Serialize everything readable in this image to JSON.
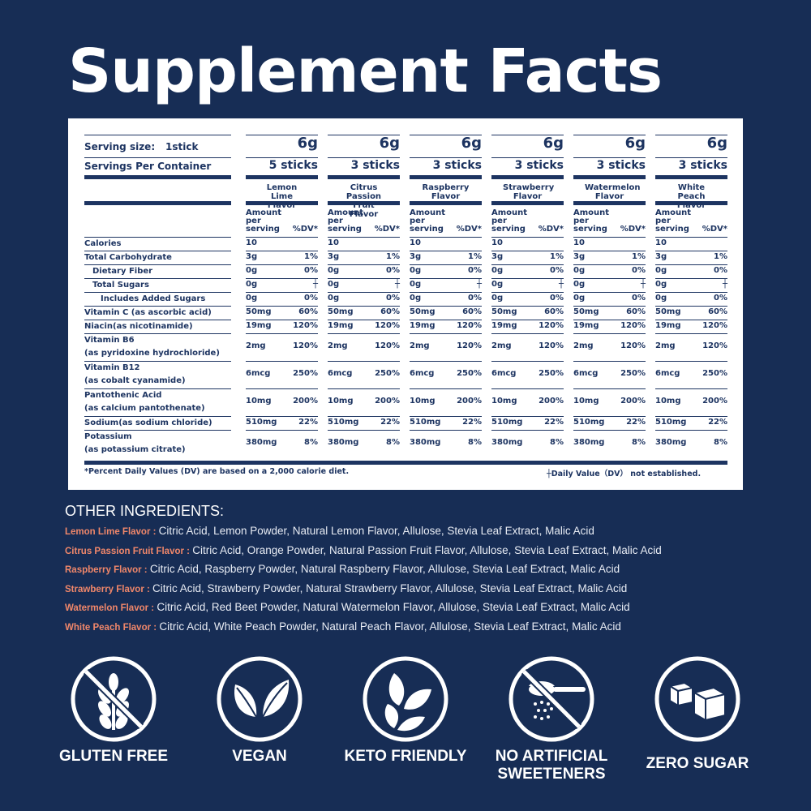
{
  "title": "Supplement Facts",
  "panel": {
    "serving_size_label": "Serving size:",
    "serving_size_value": "1stick",
    "servings_label": "Servings Per Container",
    "amount_label": "Amount per serving",
    "dv_label": "%DV*",
    "products": [
      {
        "flavor": "Lemon Lime Flavor",
        "size": "6g",
        "servings": "5 sticks"
      },
      {
        "flavor": "Citrus Passion Fruit Flavor",
        "size": "6g",
        "servings": "3 sticks"
      },
      {
        "flavor": "Raspberry Flavor",
        "size": "6g",
        "servings": "3 sticks"
      },
      {
        "flavor": "Strawberry Flavor",
        "size": "6g",
        "servings": "3 sticks"
      },
      {
        "flavor": "Watermelon Flavor",
        "size": "6g",
        "servings": "3 sticks"
      },
      {
        "flavor": "White Peach Flavor",
        "size": "6g",
        "servings": "3 sticks"
      }
    ],
    "nutrients": [
      {
        "label": "Calories",
        "amount": "10",
        "dv": ""
      },
      {
        "label": "Total Carbohydrate",
        "amount": "3g",
        "dv": "1%"
      },
      {
        "label": "Dietary Fiber",
        "amount": "0g",
        "dv": "0%"
      },
      {
        "label": "Total Sugars",
        "amount": "0g",
        "dv": "┼"
      },
      {
        "label": "Includes Added Sugars",
        "amount": "0g",
        "dv": "0%"
      },
      {
        "label": "Vitamin C (as ascorbic acid)",
        "amount": "50mg",
        "dv": "60%"
      },
      {
        "label": "Niacin(as nicotinamide)",
        "amount": "19mg",
        "dv": "120%"
      },
      {
        "label": "Vitamin B6",
        "label2": "(as pyridoxine hydrochloride)",
        "amount": "2mg",
        "dv": "120%"
      },
      {
        "label": "Vitamin B12",
        "label2": "(as cobalt cyanamide)",
        "amount": "6mcg",
        "dv": "250%"
      },
      {
        "label": "Pantothenic Acid",
        "label2": "(as calcium pantothenate)",
        "amount": "10mg",
        "dv": "200%"
      },
      {
        "label": "Sodium(as sodium chloride)",
        "amount": "510mg",
        "dv": "22%"
      },
      {
        "label": "Potassium",
        "label2": "(as potassium citrate)",
        "amount": "380mg",
        "dv": "8%"
      }
    ],
    "footnote_left": "*Percent Daily Values (DV) are based on a 2,000 calorie diet.",
    "footnote_right": "┼Daily Value（DV） not established."
  },
  "other_ingredients": {
    "title": "OTHER INGREDIENTS:",
    "items": [
      {
        "flavor": "Lemon Lime  Flavor",
        "text": "Citric Acid, Lemon Powder, Natural Lemon Flavor, Allulose, Stevia Leaf Extract, Malic Acid"
      },
      {
        "flavor": "Citrus Passion Fruit  Flavor",
        "text": "Citric Acid, Orange Powder, Natural Passion Fruit Flavor, Allulose, Stevia Leaf Extract, Malic Acid"
      },
      {
        "flavor": "Raspberry  Flavor",
        "text": "Citric Acid, Raspberry Powder, Natural Raspberry Flavor, Allulose, Stevia Leaf Extract, Malic Acid"
      },
      {
        "flavor": "Strawberry  Flavor",
        "text": "Citric Acid, Strawberry Powder, Natural Strawberry Flavor, Allulose, Stevia Leaf Extract, Malic Acid"
      },
      {
        "flavor": "Watermelon  Flavor",
        "text": "Citric Acid, Red Beet Powder, Natural Watermelon Flavor, Allulose, Stevia Leaf Extract, Malic Acid"
      },
      {
        "flavor": "White Peach  Flavor",
        "text": "Citric Acid, White Peach Powder, Natural Peach Flavor, Allulose, Stevia Leaf Extract, Malic Acid"
      }
    ]
  },
  "badges": [
    {
      "label": "GLUTEN FREE",
      "icon": "wheat-crossed-icon"
    },
    {
      "label": "VEGAN",
      "icon": "leaves-icon"
    },
    {
      "label": "KETO FRIENDLY",
      "icon": "keto-leaves-icon"
    },
    {
      "label": "NO ARTIFICIAL SWEETENERS",
      "icon": "spoon-crossed-icon"
    },
    {
      "label": "ZERO SUGAR",
      "icon": "sugar-cubes-icon"
    }
  ],
  "colors": {
    "background": "#172d55",
    "panel_text": "#1d3461",
    "flavor_accent": "#f0876a"
  }
}
